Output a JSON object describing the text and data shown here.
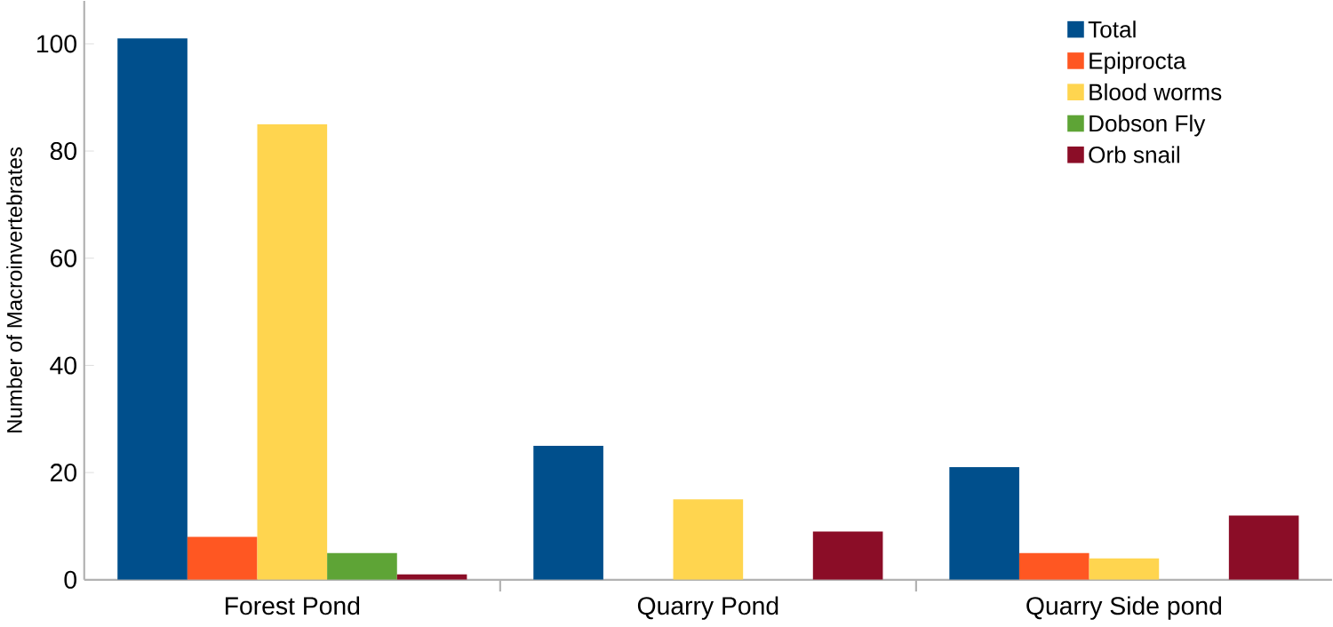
{
  "chart_data": {
    "type": "bar",
    "ylabel": "Number of Macroinvertebrates",
    "categories": [
      "Forest Pond",
      "Quarry Pond",
      "Quarry Side pond"
    ],
    "series": [
      {
        "name": "Total",
        "color": "#004f8c",
        "values": [
          101,
          25,
          21
        ]
      },
      {
        "name": "Epiprocta",
        "color": "#ff5722",
        "values": [
          8,
          0,
          5
        ]
      },
      {
        "name": "Blood worms",
        "color": "#ffd54f",
        "values": [
          85,
          15,
          4
        ]
      },
      {
        "name": "Dobson Fly",
        "color": "#5ea436",
        "values": [
          5,
          0,
          0
        ]
      },
      {
        "name": "Orb snail",
        "color": "#8b0d27",
        "values": [
          1,
          9,
          12
        ]
      }
    ],
    "ylim": [
      0,
      108
    ],
    "yticks": [
      0,
      20,
      40,
      60,
      80,
      100
    ],
    "grid": false,
    "legend": "top right"
  }
}
